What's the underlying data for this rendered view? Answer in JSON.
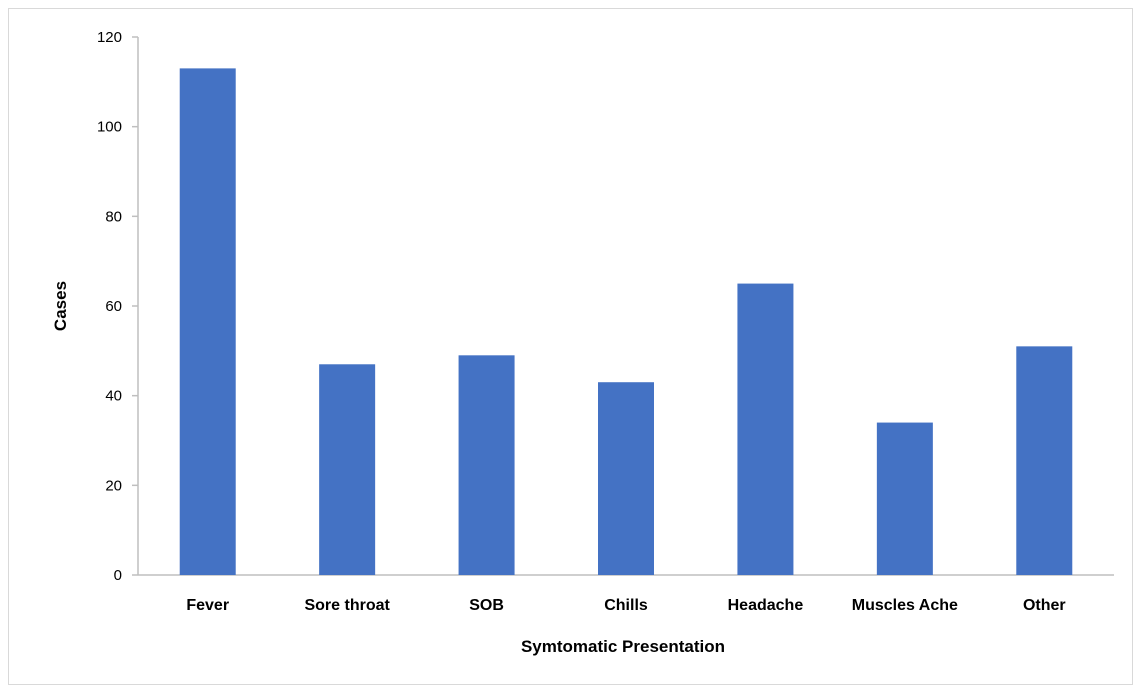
{
  "chart_data": {
    "type": "bar",
    "title": "",
    "xlabel": "Symtomatic Presentation",
    "ylabel": "Cases",
    "categories": [
      "Fever",
      "Sore throat",
      "SOB",
      "Chills",
      "Headache",
      "Muscles Ache",
      "Other"
    ],
    "values": [
      113,
      47,
      49,
      43,
      65,
      34,
      51
    ],
    "ylim": [
      0,
      120
    ],
    "yticks": [
      0,
      20,
      40,
      60,
      80,
      100,
      120
    ],
    "grid": false,
    "legend": "none",
    "bar_color": "#4472c4",
    "axis_color": "#bfbfbf"
  }
}
